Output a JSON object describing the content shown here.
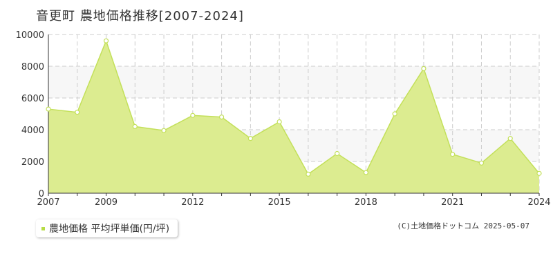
{
  "title": "音更町 農地価格推移[2007-2024]",
  "legend_label": "農地価格 平均坪単価(円/坪)",
  "copyright": "(C)土地価格ドットコム 2025-05-07",
  "colors": {
    "area_fill": "#dcec90",
    "line": "#c3e05a",
    "marker_fill": "#ffffff",
    "legend_marker": "#b7dc45",
    "band": "#f7f7f7",
    "grid": "#cccccc"
  },
  "chart_data": {
    "type": "area",
    "title": "音更町 農地価格推移[2007-2024]",
    "x": [
      2007,
      2008,
      2009,
      2010,
      2011,
      2012,
      2013,
      2014,
      2015,
      2016,
      2017,
      2018,
      2019,
      2020,
      2021,
      2022,
      2023,
      2024
    ],
    "series": [
      {
        "name": "農地価格 平均坪単価(円/坪)",
        "values": [
          5300,
          5100,
          9600,
          4200,
          3950,
          4900,
          4800,
          3450,
          4500,
          1200,
          2500,
          1300,
          5000,
          7850,
          2450,
          1900,
          3450,
          1250
        ]
      }
    ],
    "x_ticks": [
      "2007",
      "2009",
      "2012",
      "2015",
      "2018",
      "2021",
      "2024"
    ],
    "y_ticks": [
      "0",
      "2000",
      "4000",
      "6000",
      "8000",
      "10000"
    ],
    "ylim": [
      0,
      10000
    ],
    "xlim": [
      2007,
      2024
    ],
    "grid": true,
    "legend_position": "bottom-left"
  }
}
